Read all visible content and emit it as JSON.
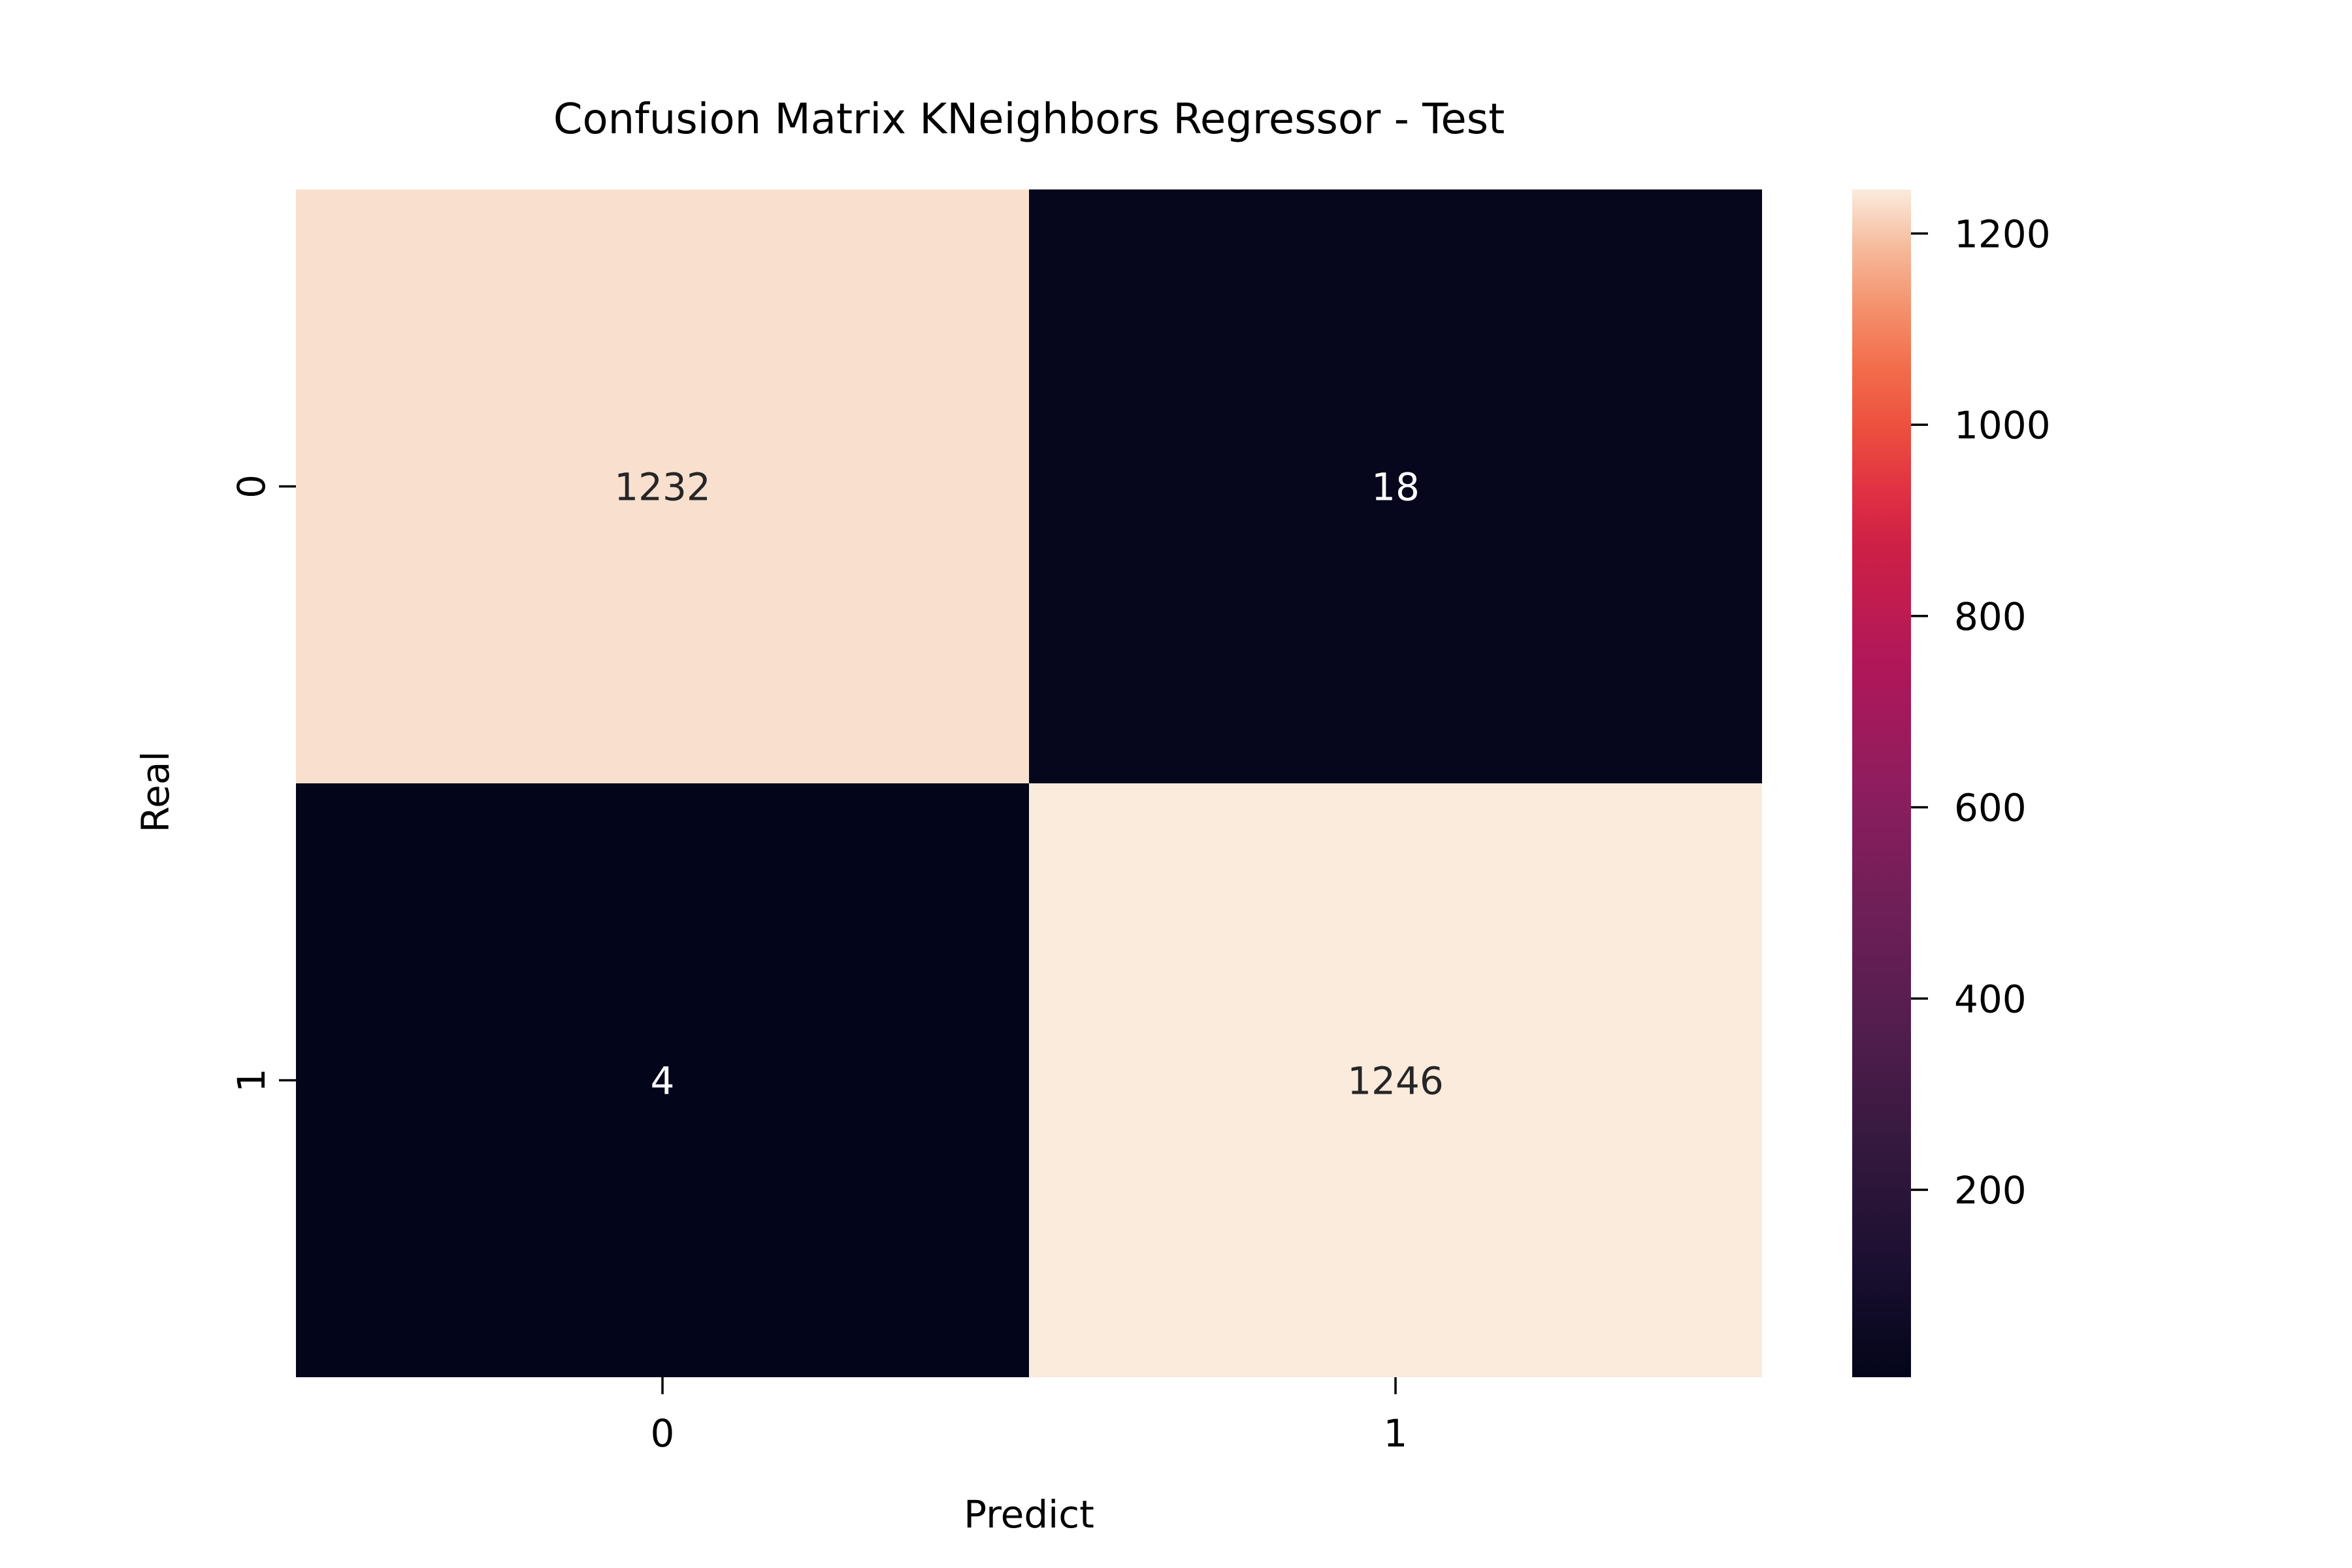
{
  "chart_data": {
    "type": "heatmap",
    "title": "Confusion Matrix KNeighbors Regressor -  Test",
    "xlabel": "Predict",
    "ylabel": "Real",
    "x_tick_labels": [
      "0",
      "1"
    ],
    "y_tick_labels": [
      "0",
      "1"
    ],
    "matrix": [
      [
        1232,
        18
      ],
      [
        4,
        1246
      ]
    ],
    "colorbar": {
      "ticks": [
        200,
        400,
        600,
        800,
        1000,
        1200
      ],
      "range": [
        4,
        1246
      ],
      "colormap": "rocket"
    },
    "colors": {
      "low": "#03051a",
      "high": "#faebdd",
      "text_on_light": "#262626",
      "text_on_dark": "#ffffff"
    }
  }
}
